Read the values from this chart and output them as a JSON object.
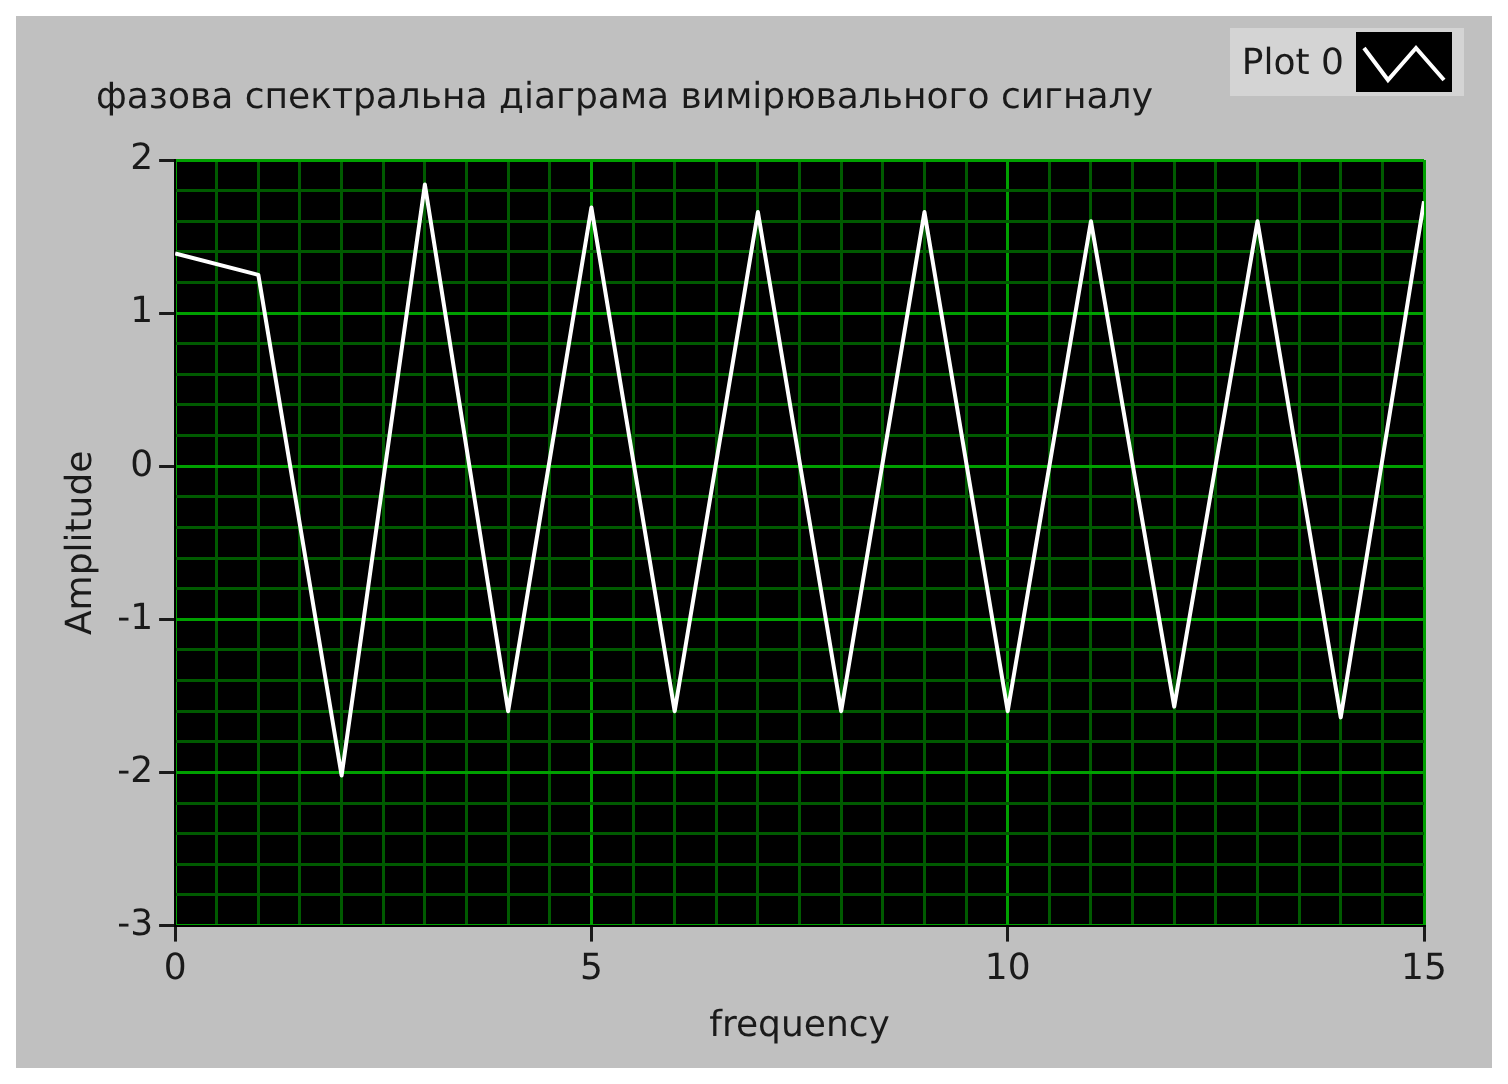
{
  "chart_data": {
    "type": "line",
    "title": "фазова спектральна діаграма вимірювального сигналу",
    "xlabel": "frequency",
    "ylabel": "Amplitude",
    "x": [
      0,
      1,
      2,
      3,
      4,
      5,
      6,
      7,
      8,
      9,
      10,
      11,
      12,
      13,
      14,
      15
    ],
    "series": [
      {
        "name": "Plot 0",
        "color": "#ffffff",
        "values": [
          1.39,
          1.25,
          -2.02,
          1.84,
          -1.6,
          1.69,
          -1.6,
          1.66,
          -1.6,
          1.66,
          -1.6,
          1.6,
          -1.57,
          1.6,
          -1.64,
          1.73
        ]
      }
    ],
    "xlim": [
      0,
      15
    ],
    "xticks": [
      0,
      {
        "value": 0.5,
        "label": null
      },
      {
        "value": 1,
        "label": null
      },
      {
        "value": 1.5,
        "label": null
      },
      {
        "value": 2,
        "label": null
      },
      {
        "value": 2.5,
        "label": null
      },
      {
        "value": 3,
        "label": null
      },
      {
        "value": 3.5,
        "label": null
      },
      {
        "value": 4,
        "label": null
      },
      {
        "value": 4.5,
        "label": null
      },
      5,
      {
        "value": 5.5,
        "label": null
      },
      {
        "value": 6,
        "label": null
      },
      {
        "value": 6.5,
        "label": null
      },
      {
        "value": 7,
        "label": null
      },
      {
        "value": 7.5,
        "label": null
      },
      {
        "value": 8,
        "label": null
      },
      {
        "value": 8.5,
        "label": null
      },
      {
        "value": 9,
        "label": null
      },
      {
        "value": 9.5,
        "label": null
      },
      10,
      {
        "value": 10.5,
        "label": null
      },
      {
        "value": 11,
        "label": null
      },
      {
        "value": 11.5,
        "label": null
      },
      {
        "value": 12,
        "label": null
      },
      {
        "value": 12.5,
        "label": null
      },
      {
        "value": 13,
        "label": null
      },
      {
        "value": 13.5,
        "label": null
      },
      {
        "value": 14,
        "label": null
      },
      {
        "value": 14.5,
        "label": null
      },
      15
    ],
    "ylim": [
      -3,
      2
    ],
    "yticks": [
      -3,
      {
        "value": -2.8,
        "label": null
      },
      {
        "value": -2.6,
        "label": null
      },
      {
        "value": -2.4,
        "label": null
      },
      {
        "value": -2.2,
        "label": null
      },
      -2,
      {
        "value": -1.8,
        "label": null
      },
      {
        "value": -1.6,
        "label": null
      },
      {
        "value": -1.4,
        "label": null
      },
      {
        "value": -1.2,
        "label": null
      },
      -1,
      {
        "value": -0.8,
        "label": null
      },
      {
        "value": -0.6,
        "label": null
      },
      {
        "value": -0.4,
        "label": null
      },
      {
        "value": -0.2,
        "label": null
      },
      0,
      {
        "value": 0.2,
        "label": null
      },
      {
        "value": 0.4,
        "label": null
      },
      {
        "value": 0.6,
        "label": null
      },
      {
        "value": 0.8,
        "label": null
      },
      1,
      {
        "value": 1.2,
        "label": null
      },
      {
        "value": 1.4,
        "label": null
      },
      {
        "value": 1.6,
        "label": null
      },
      {
        "value": 1.8,
        "label": null
      },
      2
    ],
    "grid": true,
    "legend": "top right",
    "marker": "none",
    "line_style": "solid"
  }
}
